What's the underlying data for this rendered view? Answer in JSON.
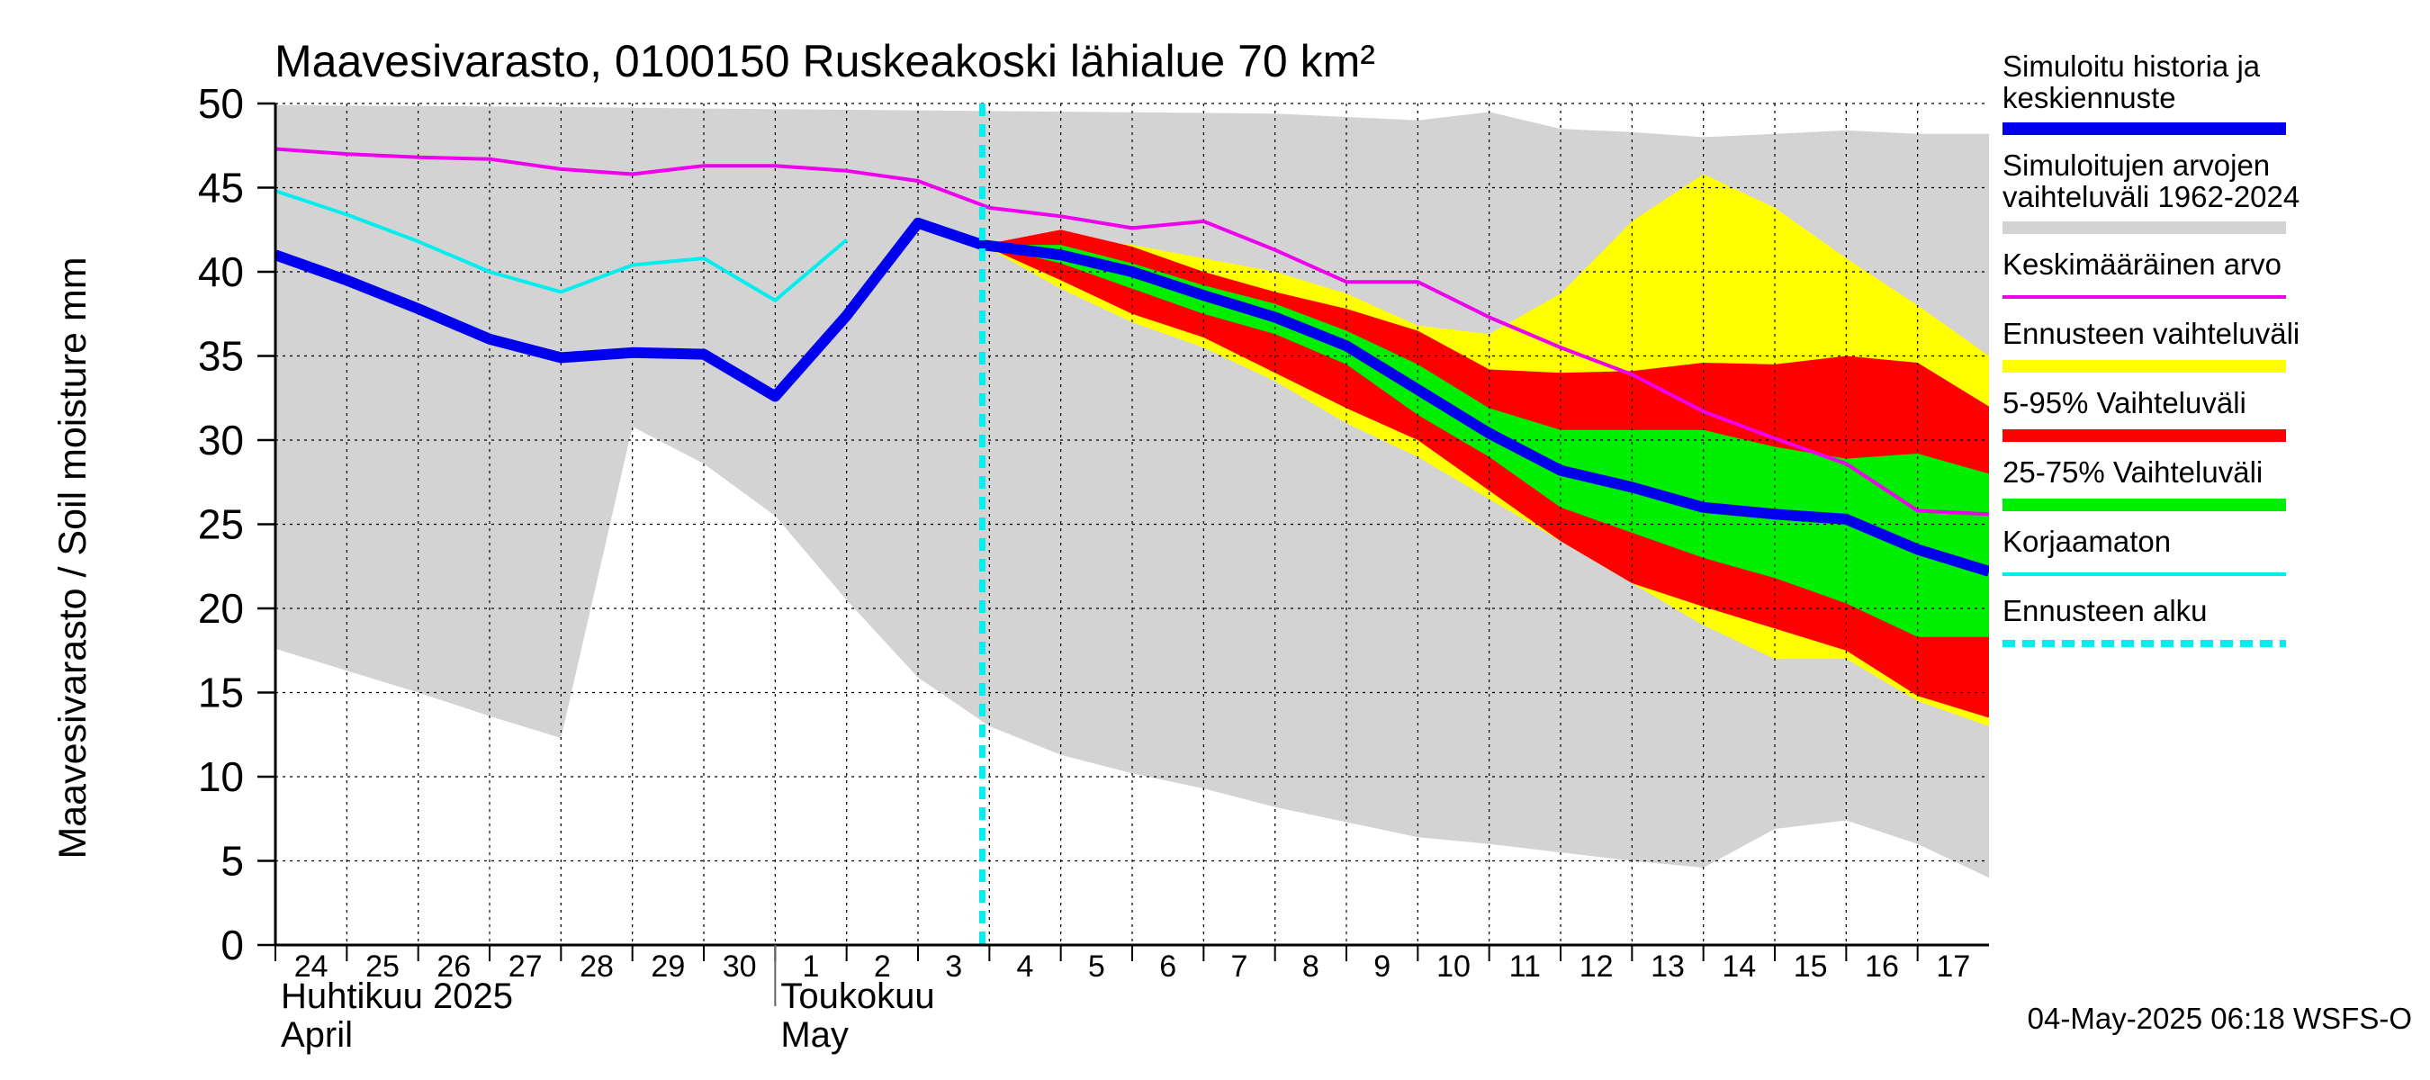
{
  "chart_data": {
    "type": "area",
    "title": "Maavesivarasto, 0100150 Ruskeakoski lähialue 70 km²",
    "ylabel": "Maavesivarasto / Soil moisture   mm",
    "ylim": [
      0,
      50
    ],
    "yticks": [
      0,
      5,
      10,
      15,
      20,
      25,
      30,
      35,
      40,
      45,
      50
    ],
    "x_days": [
      "24",
      "25",
      "26",
      "27",
      "28",
      "29",
      "30",
      "1",
      "2",
      "3",
      "4",
      "5",
      "6",
      "7",
      "8",
      "9",
      "10",
      "11",
      "12",
      "13",
      "14",
      "15",
      "16",
      "17"
    ],
    "month_labels": [
      {
        "fi": "Huhtikuu  2025",
        "en": "April",
        "start_day_index": 0
      },
      {
        "fi": "Toukokuu",
        "en": "May",
        "start_day_index": 7
      }
    ],
    "forecast_start_index": 9.9,
    "footer": "04-May-2025 06:18 WSFS-O",
    "colors": {
      "history": "#0000ee",
      "range_hist": "#d3d3d3",
      "mean": "#ee00ee",
      "forecast_range": "#ffff00",
      "p5_95": "#ff0000",
      "p25_75": "#00ee00",
      "uncorrected": "#00eeee",
      "forecast_start": "#00eeee",
      "grid": "#000000"
    },
    "legend": [
      {
        "label": "Simuloitu historia ja",
        "label2": "keskiennuste",
        "color": "#0000ee",
        "style": "thick"
      },
      {
        "label": "Simuloitujen arvojen",
        "label2": "vaihteluväli 1962-2024",
        "color": "#d3d3d3",
        "style": "thick"
      },
      {
        "label": "Keskimääräinen arvo",
        "label2": "",
        "color": "#ee00ee",
        "style": "thin"
      },
      {
        "label": "Ennusteen vaihteluväli",
        "label2": "",
        "color": "#ffff00",
        "style": "thick"
      },
      {
        "label": "5-95% Vaihteluväli",
        "label2": "",
        "color": "#ff0000",
        "style": "thick"
      },
      {
        "label": "25-75% Vaihteluväli",
        "label2": "",
        "color": "#00ee00",
        "style": "thick"
      },
      {
        "label": "Korjaamaton",
        "label2": "",
        "color": "#00eeee",
        "style": "thin"
      },
      {
        "label": "Ennusteen alku",
        "label2": "",
        "color": "#00eeee",
        "style": "dashed"
      }
    ],
    "series": {
      "range_hist_upper": [
        [
          0,
          49.9
        ],
        [
          4,
          49.8
        ],
        [
          6,
          49.7
        ],
        [
          14,
          49.4
        ],
        [
          16,
          49.0
        ],
        [
          17,
          49.5
        ],
        [
          18,
          48.5
        ],
        [
          19,
          48.3
        ],
        [
          20,
          48.0
        ],
        [
          21,
          48.2
        ],
        [
          22,
          48.4
        ],
        [
          23,
          48.2
        ],
        [
          24,
          48.2
        ]
      ],
      "range_hist_lower": [
        [
          0,
          17.6
        ],
        [
          2,
          15.0
        ],
        [
          3,
          13.6
        ],
        [
          4,
          12.3
        ],
        [
          5,
          30.8
        ],
        [
          6,
          28.6
        ],
        [
          7,
          25.5
        ],
        [
          8,
          20.5
        ],
        [
          9,
          15.9
        ],
        [
          10,
          13.0
        ],
        [
          11,
          11.3
        ],
        [
          12,
          10.2
        ],
        [
          13,
          9.3
        ],
        [
          14,
          8.2
        ],
        [
          15,
          7.3
        ],
        [
          16,
          6.4
        ],
        [
          17,
          6.0
        ],
        [
          18,
          5.5
        ],
        [
          19,
          5.0
        ],
        [
          20,
          4.6
        ],
        [
          21,
          6.9
        ],
        [
          22,
          7.4
        ],
        [
          23,
          6.0
        ],
        [
          24,
          4.0
        ]
      ],
      "forecast_range_upper": [
        [
          9.9,
          41.6
        ],
        [
          11,
          42.0
        ],
        [
          12,
          41.6
        ],
        [
          13,
          40.8
        ],
        [
          14,
          40.0
        ],
        [
          15,
          38.7
        ],
        [
          16,
          36.8
        ],
        [
          17,
          36.3
        ],
        [
          18,
          38.7
        ],
        [
          19,
          43.0
        ],
        [
          20,
          45.8
        ],
        [
          21,
          43.8
        ],
        [
          22,
          40.8
        ],
        [
          23,
          38.0
        ],
        [
          24,
          35.0
        ]
      ],
      "forecast_range_lower": [
        [
          9.9,
          41.6
        ],
        [
          11,
          39.0
        ],
        [
          12,
          37.0
        ],
        [
          13,
          35.5
        ],
        [
          14,
          33.5
        ],
        [
          15,
          31.0
        ],
        [
          16,
          29.0
        ],
        [
          17,
          26.5
        ],
        [
          18,
          24.0
        ],
        [
          19,
          21.5
        ],
        [
          20,
          19.0
        ],
        [
          21,
          17.0
        ],
        [
          22,
          17.0
        ],
        [
          23,
          14.5
        ],
        [
          24,
          13.0
        ]
      ],
      "p5_95_upper": [
        [
          9.9,
          41.6
        ],
        [
          11,
          42.5
        ],
        [
          12,
          41.5
        ],
        [
          13,
          40.0
        ],
        [
          14,
          38.8
        ],
        [
          15,
          37.8
        ],
        [
          16,
          36.5
        ],
        [
          17,
          34.2
        ],
        [
          18,
          34.0
        ],
        [
          19,
          34.1
        ],
        [
          20,
          34.6
        ],
        [
          21,
          34.5
        ],
        [
          22,
          35.0
        ],
        [
          23,
          34.6
        ],
        [
          24,
          32.0
        ]
      ],
      "p5_95_lower": [
        [
          9.9,
          41.6
        ],
        [
          11,
          39.5
        ],
        [
          12,
          37.5
        ],
        [
          13,
          36.1
        ],
        [
          14,
          34.0
        ],
        [
          15,
          31.9
        ],
        [
          16,
          30.0
        ],
        [
          17,
          27.0
        ],
        [
          18,
          24.0
        ],
        [
          19,
          21.5
        ],
        [
          20,
          20.1
        ],
        [
          21,
          18.8
        ],
        [
          22,
          17.5
        ],
        [
          23,
          14.8
        ],
        [
          24,
          13.5
        ]
      ],
      "p25_75_upper": [
        [
          9.9,
          41.6
        ],
        [
          11,
          41.6
        ],
        [
          12,
          40.5
        ],
        [
          13,
          39.2
        ],
        [
          14,
          38.1
        ],
        [
          15,
          36.5
        ],
        [
          16,
          34.5
        ],
        [
          17,
          31.9
        ],
        [
          18,
          30.6
        ],
        [
          19,
          30.6
        ],
        [
          20,
          30.6
        ],
        [
          21,
          29.6
        ],
        [
          22,
          28.9
        ],
        [
          23,
          29.2
        ],
        [
          24,
          28.0
        ]
      ],
      "p25_75_lower": [
        [
          9.9,
          41.6
        ],
        [
          11,
          40.5
        ],
        [
          12,
          39.0
        ],
        [
          13,
          37.5
        ],
        [
          14,
          36.3
        ],
        [
          15,
          34.5
        ],
        [
          16,
          31.5
        ],
        [
          17,
          29.0
        ],
        [
          18,
          26.0
        ],
        [
          19,
          24.5
        ],
        [
          20,
          23.0
        ],
        [
          21,
          21.8
        ],
        [
          22,
          20.3
        ],
        [
          23,
          18.3
        ],
        [
          24,
          18.3
        ]
      ],
      "mean": [
        [
          0,
          47.3
        ],
        [
          1,
          47.0
        ],
        [
          2,
          46.8
        ],
        [
          3,
          46.7
        ],
        [
          4,
          46.1
        ],
        [
          5,
          45.8
        ],
        [
          6,
          46.3
        ],
        [
          7,
          46.3
        ],
        [
          8,
          46.0
        ],
        [
          9,
          45.4
        ],
        [
          10,
          43.8
        ],
        [
          11,
          43.3
        ],
        [
          12,
          42.6
        ],
        [
          13,
          43.0
        ],
        [
          14,
          41.3
        ],
        [
          15,
          39.4
        ],
        [
          16,
          39.4
        ],
        [
          17,
          37.3
        ],
        [
          18,
          35.5
        ],
        [
          19,
          33.9
        ],
        [
          20,
          31.7
        ],
        [
          21,
          30.1
        ],
        [
          22,
          28.6
        ],
        [
          23,
          25.8
        ],
        [
          24,
          25.6
        ]
      ],
      "uncorrected": [
        [
          0,
          44.8
        ],
        [
          1,
          43.4
        ],
        [
          2,
          41.8
        ],
        [
          3,
          40.0
        ],
        [
          4,
          38.8
        ],
        [
          5,
          40.4
        ],
        [
          6,
          40.8
        ],
        [
          7,
          38.3
        ],
        [
          8,
          41.9
        ]
      ],
      "history": [
        [
          0,
          41.0
        ],
        [
          1,
          39.5
        ],
        [
          2,
          37.8
        ],
        [
          3,
          36.0
        ],
        [
          4,
          34.9
        ],
        [
          5,
          35.2
        ],
        [
          6,
          35.1
        ],
        [
          7,
          32.6
        ],
        [
          8,
          37.4
        ],
        [
          9,
          42.9
        ],
        [
          9.9,
          41.6
        ],
        [
          11,
          41.0
        ],
        [
          12,
          40.0
        ],
        [
          13,
          38.6
        ],
        [
          14,
          37.3
        ],
        [
          15,
          35.6
        ],
        [
          16,
          33.0
        ],
        [
          17,
          30.4
        ],
        [
          18,
          28.2
        ],
        [
          19,
          27.2
        ],
        [
          20,
          26.0
        ],
        [
          21,
          25.6
        ],
        [
          22,
          25.3
        ],
        [
          23,
          23.5
        ],
        [
          24,
          22.2
        ]
      ]
    }
  }
}
